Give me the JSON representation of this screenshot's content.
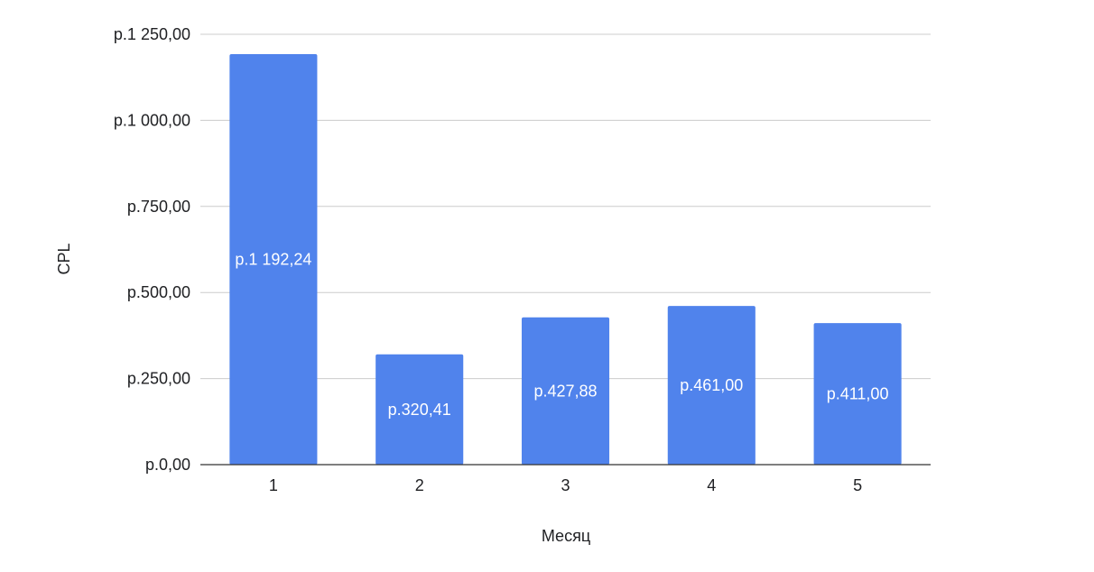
{
  "chart_data": {
    "type": "bar",
    "title": "",
    "xlabel": "Месяц",
    "ylabel": "CPL",
    "categories": [
      "1",
      "2",
      "3",
      "4",
      "5"
    ],
    "values": [
      1192.24,
      320.41,
      427.88,
      461.0,
      411.0
    ],
    "data_labels": [
      "р.1 192,24",
      "р.320,41",
      "р.427,88",
      "р.461,00",
      "р.411,00"
    ],
    "ylim": [
      0,
      1250
    ],
    "y_ticks": [
      0,
      250,
      500,
      750,
      1000,
      1250
    ],
    "y_tick_labels": [
      "р.0,00",
      "р.250,00",
      "р.500,00",
      "р.750,00",
      "р.1 000,00",
      "р.1 250,00"
    ],
    "grid": true,
    "legend": "none",
    "bar_color": "#5083ec"
  }
}
